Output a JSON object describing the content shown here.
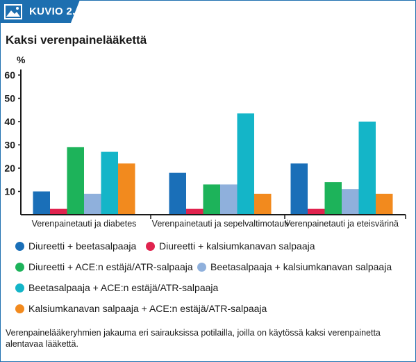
{
  "header": {
    "badge": "KUVIO 2."
  },
  "icons": {
    "figure": "image-icon"
  },
  "colors": {
    "brand": "#1d6fb0"
  },
  "chart_data": {
    "type": "bar",
    "title": "Kaksi verenpainelääkettä",
    "ylabel": "%",
    "xlabel": "",
    "ylim": [
      0,
      60
    ],
    "yticks": [
      10,
      20,
      30,
      40,
      50,
      60
    ],
    "grid": false,
    "legend_position": "bottom",
    "categories": [
      "Verenpainetauti ja diabetes",
      "Verenpainetauti ja sepelvaltimotauti",
      "Verenpainetauti ja eteisvärinä"
    ],
    "series": [
      {
        "name": "Diureetti + beetasalpaaja",
        "color": "#1a6fb8",
        "values": [
          10,
          18,
          22
        ]
      },
      {
        "name": "Diureetti + kalsiumkanavan salpaaja",
        "color": "#e0234e",
        "values": [
          2.5,
          2.5,
          2.5
        ]
      },
      {
        "name": "Diureetti + ACE:n estäjä/ATR-salpaaja",
        "color": "#1db35a",
        "values": [
          29,
          13,
          14
        ]
      },
      {
        "name": "Beetasalpaaja + kalsiumkanavan salpaaja",
        "color": "#8fb0dc",
        "values": [
          9,
          13,
          11
        ]
      },
      {
        "name": "Beetasalpaaja + ACE:n estäjä/ATR-salpaaja",
        "color": "#14b5c8",
        "values": [
          27,
          43.5,
          40
        ]
      },
      {
        "name": "Kalsiumkanavan salpaaja + ACE:n estäjä/ATR-salpaaja",
        "color": "#f28a1e",
        "values": [
          22,
          9,
          9
        ]
      }
    ]
  },
  "caption": "Verenpainelääkeryhmien jakauma eri sairauksissa potilailla, joilla on käytössä kaksi verenpainetta alentavaa lääkettä."
}
